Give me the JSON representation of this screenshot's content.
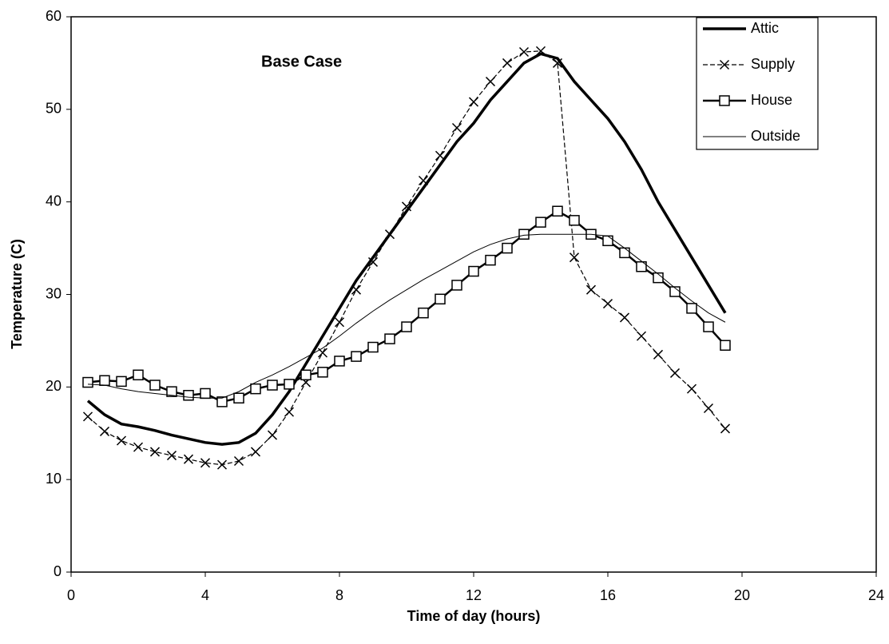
{
  "chart_data": {
    "type": "line",
    "annotation": "Base Case",
    "xlabel": "Time of day (hours)",
    "ylabel": "Temperature (C)",
    "xlim": [
      0,
      24
    ],
    "xticks": [
      0,
      4,
      8,
      12,
      16,
      20,
      24
    ],
    "ylim": [
      0,
      60
    ],
    "yticks": [
      0,
      10,
      20,
      30,
      40,
      50,
      60
    ],
    "grid": false,
    "legend": "upper right",
    "x": [
      0.5,
      1,
      1.5,
      2,
      2.5,
      3,
      3.5,
      4,
      4.5,
      5,
      5.5,
      6,
      6.5,
      7,
      7.5,
      8,
      8.5,
      9,
      9.5,
      10,
      10.5,
      11,
      11.5,
      12,
      12.5,
      13,
      13.5,
      14,
      14.5,
      15,
      15.5,
      16,
      16.5,
      17,
      17.5,
      18,
      18.5,
      19,
      19.5
    ],
    "series": [
      {
        "name": "Attic",
        "color": "#000000",
        "line_width": 3.5,
        "dash": "none",
        "marker": "none",
        "values": [
          18.5,
          17,
          16,
          15.7,
          15.3,
          14.8,
          14.4,
          14,
          13.8,
          14,
          15,
          17,
          19.5,
          22.5,
          25.5,
          28.5,
          31.5,
          34,
          36.5,
          39,
          41.5,
          44,
          46.5,
          48.5,
          51,
          53,
          55,
          56,
          55.5,
          53,
          51,
          49,
          46.5,
          43.5,
          40,
          37,
          34,
          31,
          28
        ]
      },
      {
        "name": "Supply",
        "color": "#000000",
        "line_width": 1.2,
        "dash": "6 3",
        "marker": "x",
        "values": [
          16.8,
          15.2,
          14.2,
          13.5,
          13,
          12.6,
          12.2,
          11.8,
          11.6,
          12,
          13,
          14.8,
          17.3,
          20.5,
          23.7,
          27,
          30.5,
          33.5,
          36.5,
          39.5,
          42.3,
          45,
          48,
          50.8,
          53,
          55,
          56.2,
          56.3,
          55,
          34,
          30.5,
          29,
          27.5,
          25.5,
          23.5,
          21.5,
          19.8,
          17.7,
          15.5
        ]
      },
      {
        "name": "House",
        "color": "#000000",
        "line_width": 2.5,
        "dash": "none",
        "marker": "square",
        "values": [
          20.5,
          20.7,
          20.6,
          21.3,
          20.2,
          19.5,
          19.1,
          19.3,
          18.4,
          18.8,
          19.8,
          20.2,
          20.3,
          21.3,
          21.6,
          22.8,
          23.3,
          24.3,
          25.2,
          26.5,
          28,
          29.5,
          31,
          32.5,
          33.7,
          35,
          36.5,
          37.8,
          39,
          38,
          36.5,
          35.8,
          34.5,
          33,
          31.8,
          30.3,
          28.5,
          26.5,
          24.5
        ]
      },
      {
        "name": "Outside",
        "color": "#000000",
        "line_width": 1,
        "dash": "none",
        "marker": "none",
        "values": [
          20.3,
          20.2,
          19.8,
          19.5,
          19.3,
          19.1,
          18.9,
          18.8,
          18.8,
          19.5,
          20.5,
          21.3,
          22.2,
          23.2,
          24.2,
          25.5,
          26.9,
          28.2,
          29.4,
          30.5,
          31.6,
          32.6,
          33.6,
          34.6,
          35.4,
          36,
          36.4,
          36.5,
          36.5,
          36.5,
          36.5,
          36.3,
          35,
          33.6,
          32.2,
          30.7,
          29.3,
          28,
          27
        ]
      }
    ]
  }
}
